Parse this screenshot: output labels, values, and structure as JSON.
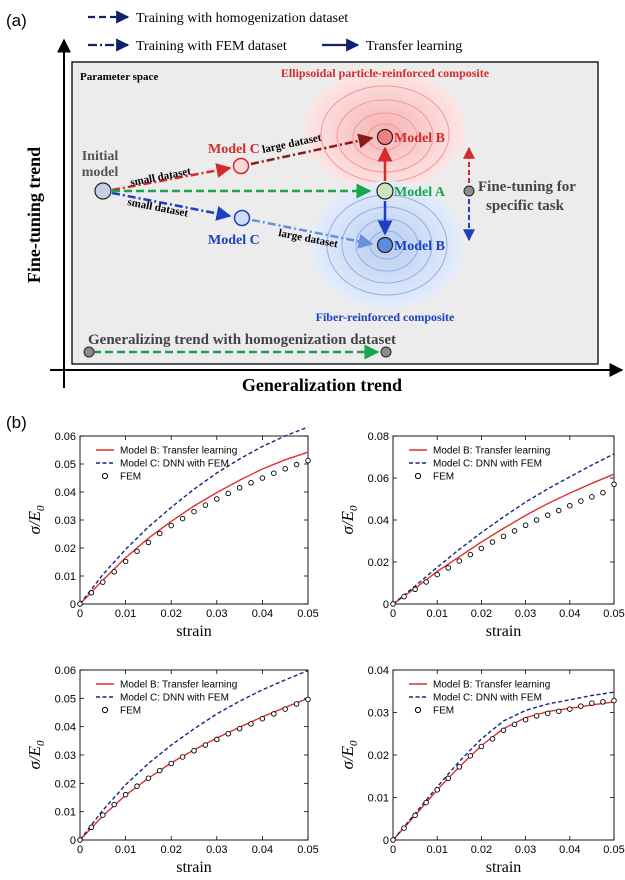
{
  "panel_a": {
    "label": "(a)",
    "legend": {
      "homog": "Training with homogenization dataset",
      "fem": "Training with FEM dataset",
      "transfer": "Transfer learning"
    },
    "param_space": "Parameter space",
    "ellipsoidal_title": "Ellipsoidal particle-reinforced composite",
    "fiber_title": "Fiber-reinforced composite",
    "initial_model_1": "Initial",
    "initial_model_2": "model",
    "small_dataset_top": "small dataset",
    "small_dataset_bottom": "small dataset",
    "large_dataset_top": "large dataset",
    "large_dataset_bottom": "large dataset",
    "model_c_top": "Model C",
    "model_c_bottom": "Model C",
    "model_b_top": "Model B",
    "model_b_bottom": "Model B",
    "model_a": "Model A",
    "fine_tuning_task_1": "Fine-tuning for",
    "fine_tuning_task_2": "specific task",
    "generalizing_trend": "Generalizing trend with homogenization dataset",
    "y_axis": "Fine-tuning trend",
    "x_axis": "Generalization trend",
    "colors": {
      "red": "#d42a2a",
      "blue": "#1f3fc2",
      "green": "#1aa54a",
      "navy": "#10206e"
    }
  },
  "panel_b": {
    "label": "(b)"
  },
  "chart_data": [
    {
      "type": "line",
      "xlabel": "strain",
      "ylabel": "σ/E",
      "ylabel_sub": "0",
      "xlim": [
        0,
        0.05
      ],
      "ylim": [
        0,
        0.06
      ],
      "xticks": [
        "0",
        "0.01",
        "0.02",
        "0.03",
        "0.04",
        "0.05"
      ],
      "yticks": [
        "0",
        "0.01",
        "0.02",
        "0.03",
        "0.04",
        "0.05",
        "0.06"
      ],
      "legend_position": "top-left",
      "series": [
        {
          "name": "Model B: Transfer learning",
          "style": "solid",
          "color": "#e03030",
          "x": [
            0,
            0.005,
            0.01,
            0.015,
            0.02,
            0.025,
            0.03,
            0.035,
            0.04,
            0.045,
            0.05
          ],
          "y": [
            0,
            0.0085,
            0.0165,
            0.0235,
            0.0295,
            0.035,
            0.0398,
            0.0442,
            0.0482,
            0.0515,
            0.0542
          ]
        },
        {
          "name": "Model C: DNN with FEM",
          "style": "dashed",
          "color": "#1a237e",
          "x": [
            0,
            0.005,
            0.01,
            0.015,
            0.02,
            0.025,
            0.03,
            0.035,
            0.04,
            0.045,
            0.05
          ],
          "y": [
            0,
            0.0105,
            0.0195,
            0.0275,
            0.0345,
            0.041,
            0.0468,
            0.0518,
            0.0563,
            0.06,
            0.0632
          ]
        },
        {
          "name": "FEM",
          "style": "circles",
          "color": "#000000",
          "x": [
            0,
            0.0025,
            0.005,
            0.0075,
            0.01,
            0.0125,
            0.015,
            0.0175,
            0.02,
            0.0225,
            0.025,
            0.0275,
            0.03,
            0.0325,
            0.035,
            0.0375,
            0.04,
            0.0425,
            0.045,
            0.0475,
            0.05
          ],
          "y": [
            0,
            0.004,
            0.0078,
            0.0115,
            0.0152,
            0.0188,
            0.022,
            0.0252,
            0.028,
            0.0305,
            0.033,
            0.0353,
            0.0375,
            0.0395,
            0.0415,
            0.0433,
            0.045,
            0.0467,
            0.0483,
            0.0498,
            0.0512
          ]
        }
      ]
    },
    {
      "type": "line",
      "xlabel": "strain",
      "ylabel": "σ/E",
      "ylabel_sub": "0",
      "xlim": [
        0,
        0.05
      ],
      "ylim": [
        0,
        0.08
      ],
      "xticks": [
        "0",
        "0.01",
        "0.02",
        "0.03",
        "0.04",
        "0.05"
      ],
      "yticks": [
        "0",
        "0.02",
        "0.04",
        "0.06",
        "0.08"
      ],
      "legend_position": "top-left",
      "series": [
        {
          "name": "Model B: Transfer learning",
          "style": "solid",
          "color": "#e03030",
          "x": [
            0,
            0.005,
            0.01,
            0.015,
            0.02,
            0.025,
            0.03,
            0.035,
            0.04,
            0.045,
            0.05
          ],
          "y": [
            0,
            0.0075,
            0.0155,
            0.0225,
            0.0295,
            0.036,
            0.0422,
            0.0478,
            0.0528,
            0.0575,
            0.0618
          ]
        },
        {
          "name": "Model C: DNN with FEM",
          "style": "dashed",
          "color": "#1a237e",
          "x": [
            0,
            0.005,
            0.01,
            0.015,
            0.02,
            0.025,
            0.03,
            0.035,
            0.04,
            0.045,
            0.05
          ],
          "y": [
            0,
            0.0085,
            0.0175,
            0.026,
            0.034,
            0.0415,
            0.0485,
            0.0548,
            0.0605,
            0.0662,
            0.0715
          ]
        },
        {
          "name": "FEM",
          "style": "circles",
          "color": "#000000",
          "x": [
            0,
            0.0025,
            0.005,
            0.0075,
            0.01,
            0.0125,
            0.015,
            0.0175,
            0.02,
            0.0225,
            0.025,
            0.0275,
            0.03,
            0.0325,
            0.035,
            0.0375,
            0.04,
            0.0425,
            0.045,
            0.0475,
            0.05
          ],
          "y": [
            0,
            0.0035,
            0.007,
            0.0105,
            0.014,
            0.0172,
            0.0205,
            0.0235,
            0.0265,
            0.0295,
            0.0322,
            0.0348,
            0.0375,
            0.04,
            0.0423,
            0.0445,
            0.0468,
            0.049,
            0.051,
            0.053,
            0.057
          ]
        }
      ]
    },
    {
      "type": "line",
      "xlabel": "strain",
      "ylabel": "σ/E",
      "ylabel_sub": "0",
      "xlim": [
        0,
        0.05
      ],
      "ylim": [
        0,
        0.06
      ],
      "xticks": [
        "0",
        "0.01",
        "0.02",
        "0.03",
        "0.04",
        "0.05"
      ],
      "yticks": [
        "0",
        "0.01",
        "0.02",
        "0.03",
        "0.04",
        "0.05",
        "0.06"
      ],
      "legend_position": "top-left",
      "series": [
        {
          "name": "Model B: Transfer learning",
          "style": "solid",
          "color": "#e03030",
          "x": [
            0,
            0.005,
            0.01,
            0.015,
            0.02,
            0.025,
            0.03,
            0.035,
            0.04,
            0.045,
            0.05
          ],
          "y": [
            0,
            0.0085,
            0.0158,
            0.0218,
            0.0272,
            0.0318,
            0.036,
            0.0398,
            0.0435,
            0.0468,
            0.05
          ]
        },
        {
          "name": "Model C: DNN with FEM",
          "style": "dashed",
          "color": "#1a237e",
          "x": [
            0,
            0.005,
            0.01,
            0.015,
            0.02,
            0.025,
            0.03,
            0.035,
            0.04,
            0.045,
            0.05
          ],
          "y": [
            0,
            0.0105,
            0.0195,
            0.027,
            0.0335,
            0.0392,
            0.0445,
            0.049,
            0.053,
            0.0565,
            0.0598
          ]
        },
        {
          "name": "FEM",
          "style": "circles",
          "color": "#000000",
          "x": [
            0,
            0.0025,
            0.005,
            0.0075,
            0.01,
            0.0125,
            0.015,
            0.0175,
            0.02,
            0.0225,
            0.025,
            0.0275,
            0.03,
            0.0325,
            0.035,
            0.0375,
            0.04,
            0.0425,
            0.045,
            0.0475,
            0.05
          ],
          "y": [
            0,
            0.0045,
            0.0088,
            0.0125,
            0.016,
            0.019,
            0.0218,
            0.0245,
            0.027,
            0.0293,
            0.0315,
            0.0335,
            0.0355,
            0.0375,
            0.0393,
            0.041,
            0.0428,
            0.0445,
            0.0462,
            0.048,
            0.0496
          ]
        }
      ]
    },
    {
      "type": "line",
      "xlabel": "strain",
      "ylabel": "σ/E",
      "ylabel_sub": "0",
      "xlim": [
        0,
        0.05
      ],
      "ylim": [
        0,
        0.04
      ],
      "xticks": [
        "0",
        "0.01",
        "0.02",
        "0.03",
        "0.04",
        "0.05"
      ],
      "yticks": [
        "0",
        "0.01",
        "0.02",
        "0.03",
        "0.04"
      ],
      "legend_position": "top-left",
      "series": [
        {
          "name": "Model B: Transfer learning",
          "style": "solid",
          "color": "#e03030",
          "x": [
            0,
            0.005,
            0.01,
            0.015,
            0.02,
            0.025,
            0.03,
            0.035,
            0.04,
            0.045,
            0.05
          ],
          "y": [
            0,
            0.0058,
            0.0118,
            0.0172,
            0.0222,
            0.0262,
            0.0288,
            0.0302,
            0.031,
            0.0318,
            0.0325
          ]
        },
        {
          "name": "Model C: DNN with FEM",
          "style": "dashed",
          "color": "#1a237e",
          "x": [
            0,
            0.005,
            0.01,
            0.015,
            0.02,
            0.025,
            0.03,
            0.035,
            0.04,
            0.045,
            0.05
          ],
          "y": [
            0,
            0.0062,
            0.0125,
            0.0185,
            0.0238,
            0.028,
            0.0305,
            0.032,
            0.033,
            0.034,
            0.0348
          ]
        },
        {
          "name": "FEM",
          "style": "circles",
          "color": "#000000",
          "x": [
            0,
            0.0025,
            0.005,
            0.0075,
            0.01,
            0.0125,
            0.015,
            0.0175,
            0.02,
            0.0225,
            0.025,
            0.0275,
            0.03,
            0.0325,
            0.035,
            0.0375,
            0.04,
            0.0425,
            0.045,
            0.0475,
            0.05
          ],
          "y": [
            0,
            0.0028,
            0.0058,
            0.0088,
            0.0118,
            0.0145,
            0.0172,
            0.0198,
            0.022,
            0.0238,
            0.0258,
            0.0272,
            0.0283,
            0.0292,
            0.0298,
            0.0303,
            0.0308,
            0.0315,
            0.0322,
            0.0325,
            0.0328
          ]
        }
      ]
    }
  ]
}
